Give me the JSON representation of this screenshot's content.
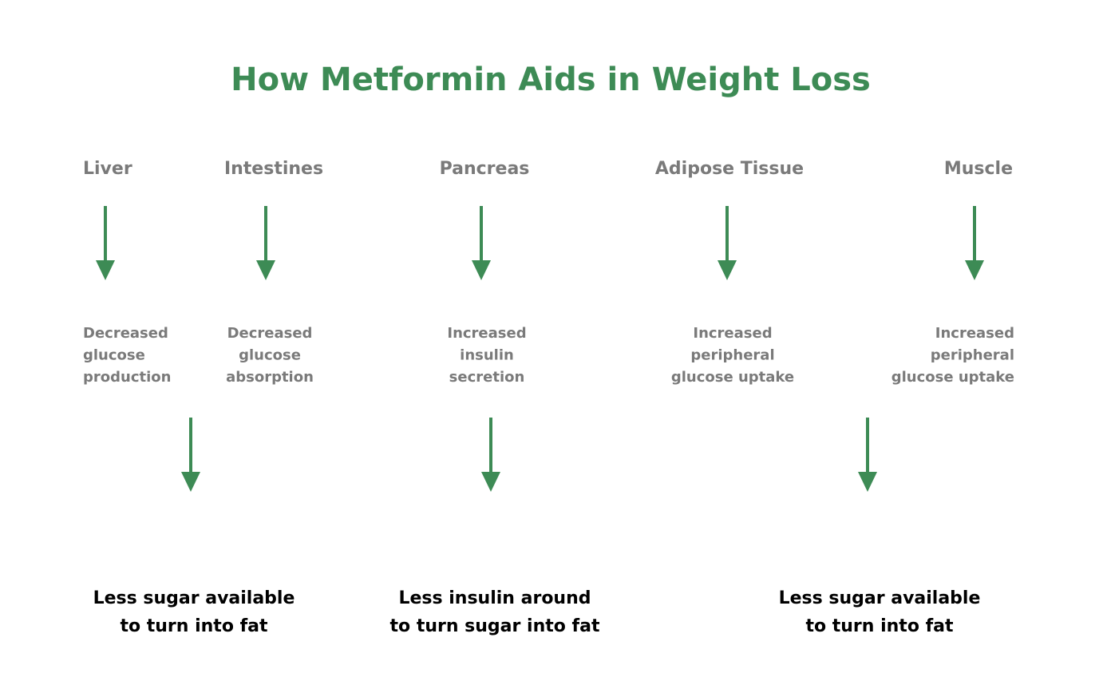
{
  "title": "How Metformin Aids in Weight Loss",
  "organs": [
    {
      "label": "Liver",
      "effect": [
        "Decreased",
        "glucose",
        "production"
      ]
    },
    {
      "label": "Intestines",
      "effect": [
        "Decreased",
        "glucose",
        "absorption"
      ]
    },
    {
      "label": "Pancreas",
      "effect": [
        "Increased",
        "insulin",
        "secretion"
      ]
    },
    {
      "label": "Adipose Tissue",
      "effect": [
        "Increased",
        "peripheral",
        "glucose uptake"
      ]
    },
    {
      "label": "Muscle",
      "effect": [
        "Increased",
        "peripheral",
        "glucose uptake"
      ]
    }
  ],
  "outcomes": [
    [
      "Less sugar available",
      "to turn into fat"
    ],
    [
      "Less insulin around",
      "to turn sugar into fat"
    ],
    [
      "Less sugar available",
      "to turn into fat"
    ]
  ]
}
